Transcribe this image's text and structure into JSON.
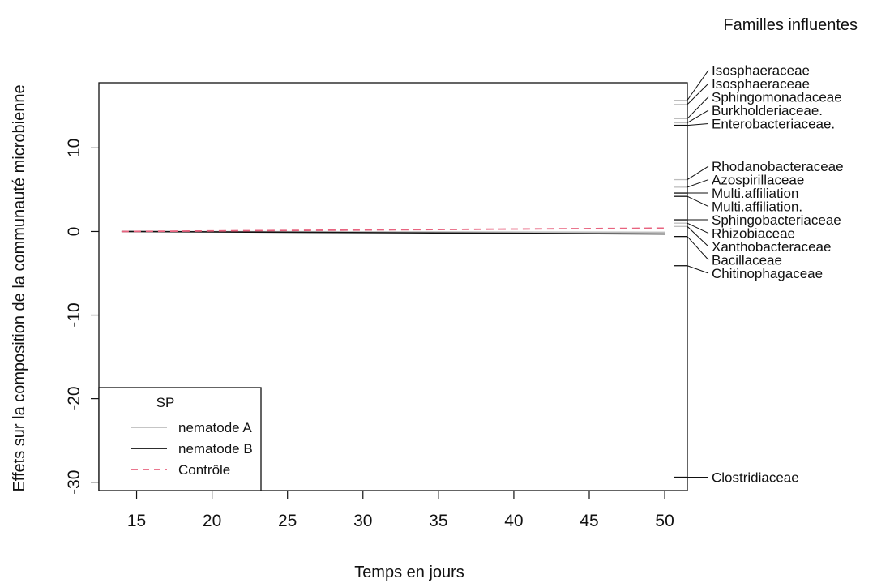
{
  "chart_data": {
    "type": "line",
    "xlabel": "Temps en jours",
    "ylabel": "Effets sur la composition de la communauté microbienne",
    "xlim": [
      12.5,
      51.5
    ],
    "ylim": [
      -31,
      17.8
    ],
    "x_ticks": [
      15,
      20,
      25,
      30,
      35,
      40,
      45,
      50
    ],
    "y_ticks": [
      -30,
      -20,
      -10,
      0,
      10
    ],
    "legend": {
      "title": "SP",
      "position": "bottom-left",
      "entries": [
        {
          "label": "nematode A",
          "color": "#bdbdbd",
          "dash": "solid"
        },
        {
          "label": "nematode B",
          "color": "#111111",
          "dash": "solid"
        },
        {
          "label": "Contrôle",
          "color": "#e8637f",
          "dash": "dashed"
        }
      ]
    },
    "series": [
      {
        "name": "nematode A",
        "color": "#bdbdbd",
        "x": [
          14,
          50
        ],
        "y": [
          0,
          -0.1
        ]
      },
      {
        "name": "nematode B",
        "color": "#111111",
        "x": [
          14,
          50
        ],
        "y": [
          0,
          -0.3
        ]
      },
      {
        "name": "Contrôle",
        "color": "#e8637f",
        "x": [
          14,
          50
        ],
        "y": [
          0,
          0.4
        ]
      }
    ],
    "side_panel_title": "Familles influentes",
    "side_marks": [
      {
        "y": 15.7,
        "color": "#bdbdbd"
      },
      {
        "y": 15.2,
        "color": "#bdbdbd"
      },
      {
        "y": 13.5,
        "color": "#bdbdbd"
      },
      {
        "y": 13.0,
        "color": "#bdbdbd"
      },
      {
        "y": 12.7,
        "color": "#111111"
      },
      {
        "y": 6.2,
        "color": "#bdbdbd"
      },
      {
        "y": 5.3,
        "color": "#bdbdbd"
      },
      {
        "y": 4.6,
        "color": "#111111"
      },
      {
        "y": 4.2,
        "color": "#111111"
      },
      {
        "y": 1.4,
        "color": "#111111"
      },
      {
        "y": 1.0,
        "color": "#bdbdbd"
      },
      {
        "y": 0.6,
        "color": "#bdbdbd"
      },
      {
        "y": -0.6,
        "color": "#111111"
      },
      {
        "y": -4.1,
        "color": "#111111"
      },
      {
        "y": -29.4,
        "color": "#111111"
      }
    ],
    "families": [
      {
        "name": "Isosphaeraceae",
        "mark": 0,
        "label_y": 19.3
      },
      {
        "name": "Isosphaeraceae",
        "mark": 1,
        "label_y": 17.7
      },
      {
        "name": "Sphingomonadaceae",
        "mark": 2,
        "label_y": 16.1
      },
      {
        "name": "Burkholderiaceae.",
        "mark": 3,
        "label_y": 14.5
      },
      {
        "name": "Enterobacteriaceae.",
        "mark": 4,
        "label_y": 12.9
      },
      {
        "name": "Rhodanobacteraceae",
        "mark": 5,
        "label_y": 7.8
      },
      {
        "name": "Azospirillaceae",
        "mark": 6,
        "label_y": 6.2
      },
      {
        "name": "Multi.affiliation",
        "mark": 7,
        "label_y": 4.6
      },
      {
        "name": "Multi.affiliation.",
        "mark": 8,
        "label_y": 3.0
      },
      {
        "name": "Sphingobacteriaceae",
        "mark": 9,
        "label_y": 1.4
      },
      {
        "name": "Rhizobiaceae",
        "mark": 10,
        "label_y": -0.2
      },
      {
        "name": "Xanthobacteraceae",
        "mark": 11,
        "label_y": -1.8
      },
      {
        "name": "Bacillaceae",
        "mark": 12,
        "label_y": -3.4
      },
      {
        "name": "Chitinophagaceae",
        "mark": 13,
        "label_y": -5.0
      },
      {
        "name": "Clostridiaceae",
        "mark": 14,
        "label_y": -29.4
      }
    ]
  }
}
